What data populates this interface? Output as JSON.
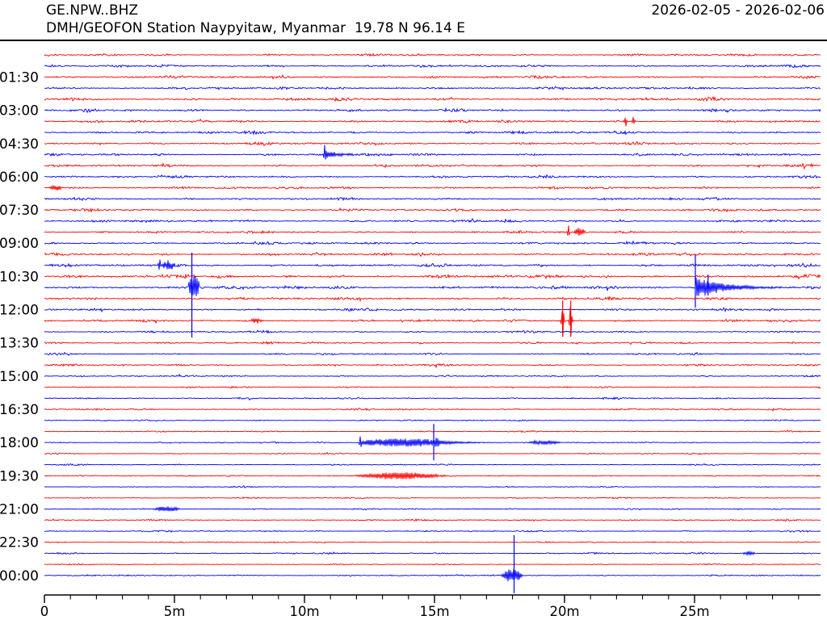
{
  "header": {
    "station_code": "GE.NPW..BHZ",
    "date_range": "2026-02-05 - 2026-02-06",
    "station_desc": "DMH/GEOFON Station Naypyitaw, Myanmar  19.78 N 96.14 E"
  },
  "chart_data": {
    "type": "line",
    "subtype": "helicorder-dayplot",
    "title": "GE.NPW..BHZ",
    "xlabel": "",
    "ylabel": "",
    "minutes_per_line": 30,
    "line_count": 48,
    "x_range_min": [
      0,
      29.84
    ],
    "grid": false,
    "legend": "none",
    "colors": {
      "odd_trace": "#ff0000",
      "even_trace": "#0000ff",
      "axis": "#000000"
    },
    "x_axis": {
      "major_ticks": [
        {
          "m": 0,
          "label": "0"
        },
        {
          "m": 5,
          "label": "5m"
        },
        {
          "m": 10,
          "label": "10m"
        },
        {
          "m": 15,
          "label": "15m"
        },
        {
          "m": 20,
          "label": "20m"
        },
        {
          "m": 25,
          "label": "25m"
        }
      ],
      "minor_tick_every_min": 1,
      "minor_tick_max_min": 29
    },
    "rows": [
      {
        "start": "00:30",
        "color": "#ff0000",
        "amp": 2.0,
        "label": "",
        "events": []
      },
      {
        "start": "01:00",
        "color": "#0000ff",
        "amp": 2.2,
        "label": "",
        "events": []
      },
      {
        "start": "01:30",
        "color": "#ff0000",
        "amp": 2.5,
        "label": "01:30",
        "events": []
      },
      {
        "start": "02:00",
        "color": "#0000ff",
        "amp": 2.3,
        "label": "",
        "events": []
      },
      {
        "start": "02:30",
        "color": "#ff0000",
        "amp": 2.6,
        "label": "",
        "events": []
      },
      {
        "start": "03:00",
        "color": "#0000ff",
        "amp": 2.4,
        "label": "03:00",
        "events": []
      },
      {
        "start": "03:30",
        "color": "#ff0000",
        "amp": 2.3,
        "label": "",
        "events": [
          {
            "shape": "spike",
            "t": 22.35,
            "dur": 0.18,
            "amp": 7
          },
          {
            "shape": "spike",
            "t": 22.65,
            "dur": 0.18,
            "amp": 6
          }
        ]
      },
      {
        "start": "04:00",
        "color": "#0000ff",
        "amp": 2.5,
        "label": "",
        "events": []
      },
      {
        "start": "04:30",
        "color": "#ff0000",
        "amp": 2.5,
        "label": "04:30",
        "events": []
      },
      {
        "start": "05:00",
        "color": "#0000ff",
        "amp": 2.3,
        "label": "",
        "events": [
          {
            "shape": "spike",
            "t": 10.78,
            "dur": 0.12,
            "amp": 13
          },
          {
            "shape": "quake",
            "t": 10.82,
            "dur": 1.7,
            "amp": 4.5
          }
        ]
      },
      {
        "start": "05:30",
        "color": "#ff0000",
        "amp": 2.2,
        "label": "",
        "events": []
      },
      {
        "start": "06:00",
        "color": "#0000ff",
        "amp": 2.3,
        "label": "06:00",
        "events": []
      },
      {
        "start": "06:30",
        "color": "#ff0000",
        "amp": 2.3,
        "label": "",
        "events": [
          {
            "shape": "burst",
            "t": 0.15,
            "dur": 0.55,
            "amp": 3.5
          }
        ]
      },
      {
        "start": "07:00",
        "color": "#0000ff",
        "amp": 2.2,
        "label": "",
        "events": []
      },
      {
        "start": "07:30",
        "color": "#ff0000",
        "amp": 2.2,
        "label": "07:30",
        "events": []
      },
      {
        "start": "08:00",
        "color": "#0000ff",
        "amp": 2.4,
        "label": "",
        "events": []
      },
      {
        "start": "08:30",
        "color": "#ff0000",
        "amp": 2.2,
        "label": "",
        "events": [
          {
            "shape": "spike",
            "t": 20.15,
            "dur": 0.14,
            "amp": 9
          },
          {
            "shape": "burst",
            "t": 20.35,
            "dur": 0.45,
            "amp": 5
          }
        ]
      },
      {
        "start": "09:00",
        "color": "#0000ff",
        "amp": 2.4,
        "label": "09:00",
        "events": []
      },
      {
        "start": "09:30",
        "color": "#ff0000",
        "amp": 2.5,
        "label": "",
        "events": []
      },
      {
        "start": "10:00",
        "color": "#0000ff",
        "amp": 2.5,
        "label": "",
        "events": [
          {
            "shape": "spike",
            "t": 4.42,
            "dur": 0.12,
            "amp": 10
          },
          {
            "shape": "burst",
            "t": 4.5,
            "dur": 0.55,
            "amp": 6
          }
        ]
      },
      {
        "start": "10:30",
        "color": "#ff0000",
        "amp": 3.0,
        "label": "10:30",
        "events": []
      },
      {
        "start": "11:00",
        "color": "#0000ff",
        "amp": 3.0,
        "label": "",
        "events": [
          {
            "shape": "flat",
            "t": 5.55,
            "dur": 0.4,
            "amp": 16
          },
          {
            "shape": "vline",
            "t": 5.67,
            "vup": 43,
            "vdown": 62
          },
          {
            "shape": "vline",
            "t": 25.03,
            "vup": 41,
            "vdown": 25
          },
          {
            "shape": "quake",
            "t": 25.05,
            "dur": 3.4,
            "amp": 13
          },
          {
            "shape": "vline",
            "t": 25.52,
            "vup": 16,
            "vdown": 10
          }
        ]
      },
      {
        "start": "11:30",
        "color": "#ff0000",
        "amp": 2.6,
        "label": "",
        "events": []
      },
      {
        "start": "12:00",
        "color": "#0000ff",
        "amp": 2.2,
        "label": "12:00",
        "events": []
      },
      {
        "start": "12:30",
        "color": "#ff0000",
        "amp": 2.2,
        "label": "",
        "events": [
          {
            "shape": "burst",
            "t": 7.9,
            "dur": 0.45,
            "amp": 3
          },
          {
            "shape": "spike",
            "t": 19.93,
            "dur": 0.16,
            "amp": 21
          },
          {
            "shape": "spike",
            "t": 20.24,
            "dur": 0.16,
            "amp": 21
          },
          {
            "shape": "vline",
            "t": 19.93,
            "vup": 25,
            "vdown": 20
          },
          {
            "shape": "vline",
            "t": 20.24,
            "vup": 25,
            "vdown": 20
          }
        ]
      },
      {
        "start": "13:00",
        "color": "#0000ff",
        "amp": 2.0,
        "label": "",
        "events": []
      },
      {
        "start": "13:30",
        "color": "#ff0000",
        "amp": 1.9,
        "label": "13:30",
        "events": []
      },
      {
        "start": "14:00",
        "color": "#0000ff",
        "amp": 1.7,
        "label": "",
        "events": []
      },
      {
        "start": "14:30",
        "color": "#ff0000",
        "amp": 1.8,
        "label": "",
        "events": []
      },
      {
        "start": "15:00",
        "color": "#0000ff",
        "amp": 1.5,
        "label": "15:00",
        "events": []
      },
      {
        "start": "15:30",
        "color": "#ff0000",
        "amp": 1.4,
        "label": "",
        "events": []
      },
      {
        "start": "16:00",
        "color": "#0000ff",
        "amp": 1.5,
        "label": "",
        "events": []
      },
      {
        "start": "16:30",
        "color": "#ff0000",
        "amp": 1.6,
        "label": "16:30",
        "events": []
      },
      {
        "start": "17:00",
        "color": "#0000ff",
        "amp": 1.2,
        "label": "",
        "events": []
      },
      {
        "start": "17:30",
        "color": "#ff0000",
        "amp": 1.3,
        "label": "",
        "events": []
      },
      {
        "start": "18:00",
        "color": "#0000ff",
        "amp": 1.2,
        "label": "18:00",
        "events": [
          {
            "shape": "spike",
            "t": 12.15,
            "dur": 0.12,
            "amp": 12
          },
          {
            "shape": "flat",
            "t": 12.2,
            "dur": 3.0,
            "amp": 5
          },
          {
            "shape": "quake",
            "t": 15.0,
            "dur": 2.6,
            "amp": 4
          },
          {
            "shape": "burst",
            "t": 18.5,
            "dur": 1.4,
            "amp": 2.6
          },
          {
            "shape": "vline",
            "t": 14.97,
            "vup": 23,
            "vdown": 22
          }
        ]
      },
      {
        "start": "18:30",
        "color": "#ff0000",
        "amp": 1.1,
        "label": "",
        "events": []
      },
      {
        "start": "19:00",
        "color": "#0000ff",
        "amp": 1.2,
        "label": "",
        "events": []
      },
      {
        "start": "19:30",
        "color": "#ff0000",
        "amp": 1.1,
        "label": "19:30",
        "events": [
          {
            "shape": "cigar",
            "t": 11.55,
            "dur": 4.2,
            "amp": 4.5
          }
        ]
      },
      {
        "start": "20:00",
        "color": "#0000ff",
        "amp": 1.0,
        "label": "",
        "events": []
      },
      {
        "start": "20:30",
        "color": "#ff0000",
        "amp": 1.2,
        "label": "",
        "events": []
      },
      {
        "start": "21:00",
        "color": "#0000ff",
        "amp": 1.2,
        "label": "21:00",
        "events": [
          {
            "shape": "burst",
            "t": 4.15,
            "dur": 1.1,
            "amp": 3
          }
        ]
      },
      {
        "start": "21:30",
        "color": "#ff0000",
        "amp": 1.3,
        "label": "",
        "events": []
      },
      {
        "start": "22:00",
        "color": "#0000ff",
        "amp": 1.4,
        "label": "",
        "events": []
      },
      {
        "start": "22:30",
        "color": "#ff0000",
        "amp": 1.2,
        "label": "22:30",
        "events": []
      },
      {
        "start": "23:00",
        "color": "#0000ff",
        "amp": 1.5,
        "label": "",
        "events": [
          {
            "shape": "burst",
            "t": 26.85,
            "dur": 0.5,
            "amp": 2.5
          }
        ]
      },
      {
        "start": "23:30",
        "color": "#ff0000",
        "amp": 1.0,
        "label": "",
        "events": []
      },
      {
        "start": "00:00",
        "color": "#0000ff",
        "amp": 1.4,
        "label": "00:00",
        "events": [
          {
            "shape": "burst",
            "t": 17.55,
            "dur": 0.85,
            "amp": 8
          },
          {
            "shape": "vline",
            "t": 18.06,
            "vup": 50,
            "vdown": 22
          }
        ]
      }
    ]
  }
}
